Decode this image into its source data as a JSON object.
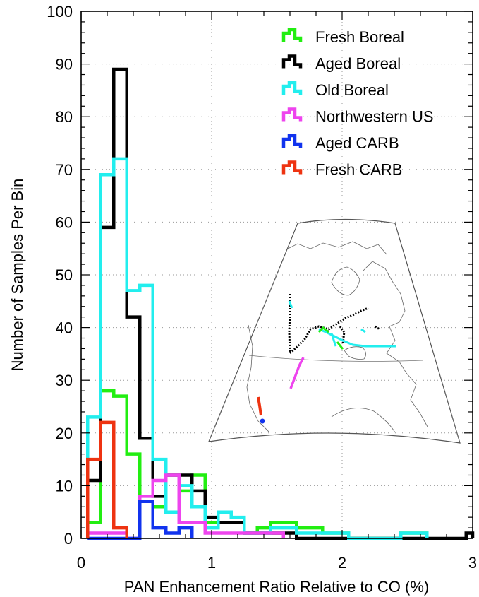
{
  "chart_data": {
    "type": "histogram",
    "xlabel": "PAN Enhancement Ratio Relative to CO (%)",
    "ylabel": "Number of Samples Per Bin",
    "xlim": [
      0,
      3
    ],
    "ylim": [
      0,
      100
    ],
    "x_ticks": [
      0,
      1,
      2,
      3
    ],
    "y_ticks": [
      0,
      10,
      20,
      30,
      40,
      50,
      60,
      70,
      80,
      90,
      100
    ],
    "grid": "dotted",
    "legend_position": "top-right",
    "bin_width": 0.1,
    "bin_starts": [
      0.05,
      0.15,
      0.25,
      0.35,
      0.45,
      0.55,
      0.65,
      0.75,
      0.85,
      0.95,
      1.05,
      1.15,
      1.25,
      1.35,
      1.45,
      1.55,
      1.65,
      1.75,
      1.85,
      1.95,
      2.05,
      2.15,
      2.25,
      2.35,
      2.45,
      2.55,
      2.65,
      2.75,
      2.85,
      2.95
    ],
    "series": [
      {
        "name": "Fresh Boreal",
        "color": "#22ee11",
        "values": [
          3,
          28,
          27,
          16,
          7,
          6,
          5,
          9,
          12,
          3,
          3,
          3,
          1,
          2,
          3,
          3,
          2,
          2,
          1,
          1,
          0,
          0,
          0,
          0,
          1,
          1,
          0,
          0,
          0,
          0
        ]
      },
      {
        "name": "Aged Boreal",
        "color": "#000000",
        "values": [
          11,
          59,
          89,
          42,
          19,
          8,
          12,
          12,
          9,
          4,
          3,
          3,
          1,
          1,
          1,
          1,
          0,
          0,
          0,
          0,
          0,
          0,
          0,
          0,
          0,
          0,
          0,
          0,
          0,
          1
        ]
      },
      {
        "name": "Old Boreal",
        "color": "#22eeee",
        "values": [
          23,
          69,
          72,
          47,
          48,
          15,
          5,
          10,
          6,
          2,
          5,
          4,
          1,
          1,
          2,
          2,
          1,
          1,
          1,
          1,
          0,
          0,
          0,
          0,
          1,
          1,
          0,
          0,
          0,
          0
        ]
      },
      {
        "name": "Northwestern US",
        "color": "#ee44ee",
        "values": [
          1,
          1,
          1,
          0,
          8,
          11,
          12,
          3,
          3,
          1,
          1,
          1,
          1,
          1,
          1,
          0,
          0,
          0,
          0,
          0,
          0,
          0,
          0,
          0,
          0,
          0,
          0,
          0,
          0,
          0
        ]
      },
      {
        "name": "Aged CARB",
        "color": "#1133ee",
        "values": [
          0,
          0,
          0,
          0,
          7,
          2,
          1,
          2,
          0,
          0,
          0,
          0,
          0,
          0,
          0,
          0,
          0,
          0,
          0,
          0,
          0,
          0,
          0,
          0,
          0,
          0,
          0,
          0,
          0,
          0
        ]
      },
      {
        "name": "Fresh CARB",
        "color": "#ee3311",
        "values": [
          15,
          22,
          2,
          0,
          0,
          0,
          0,
          0,
          0,
          0,
          0,
          0,
          0,
          0,
          0,
          0,
          0,
          0,
          0,
          0,
          0,
          0,
          0,
          0,
          0,
          0,
          0,
          0,
          0,
          0
        ]
      }
    ]
  }
}
